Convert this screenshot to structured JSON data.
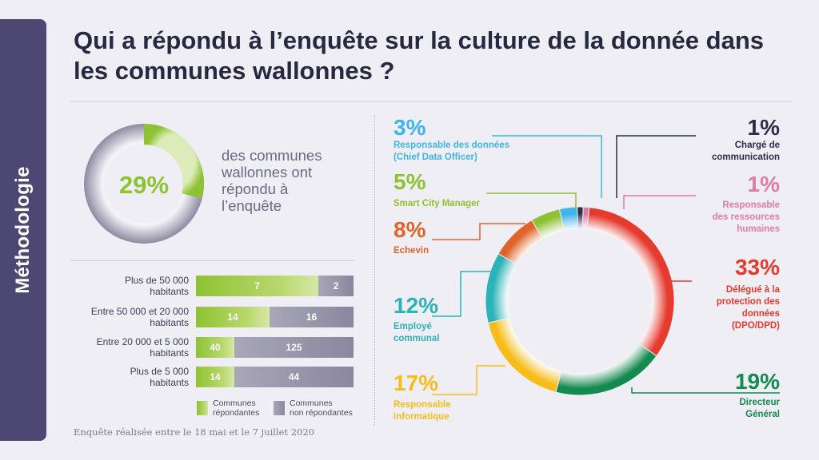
{
  "side_tab": "Méthodologie",
  "title": "Qui a répondu à l’enquête sur la culture de la donnée dans les communes wallonnes ?",
  "kpi": {
    "percent": 29,
    "percent_label": "29%",
    "text": "des communes wallonnes ont répondu à l’enquête",
    "fill_color": "#8ec232",
    "track_color": "#8a879e"
  },
  "footnote": "Enquête réalisée entre le 18 mai et le 7 juillet 2020",
  "chart_data": [
    {
      "type": "bar",
      "orientation": "horizontal",
      "stacked": true,
      "categories": [
        "Plus de 50 000\nhabitants",
        "Entre 50 000 et 20 000\nhabitants",
        "Entre 20 000 et 5 000\nhabitants",
        "Plus de 5 000\nhabitants"
      ],
      "series": [
        {
          "name": "Communes répondantes",
          "values": [
            7,
            14,
            40,
            14
          ],
          "value_labels": [
            "7",
            "14",
            "40",
            "14"
          ],
          "color": "#8ec232"
        },
        {
          "name": "Communes non répondantes",
          "values": [
            2,
            16,
            125,
            44
          ],
          "value_labels": [
            "2",
            "16",
            "125",
            "44"
          ],
          "color": "#8a879e"
        }
      ],
      "legend": {
        "respondents": "Communes\nrépondantes",
        "non_respondents": "Communes\nnon répondantes",
        "position": "bottom-right"
      }
    },
    {
      "type": "pie",
      "donut": true,
      "slices": [
        {
          "id": "cdo",
          "percent": 3,
          "label_pct": "3%",
          "label": "Responsable des données\n(Chief Data Officer)",
          "color": "#3db4ea"
        },
        {
          "id": "comm",
          "percent": 1,
          "label_pct": "1%",
          "label": "Chargé de\ncommunication",
          "color": "#2b2e4a"
        },
        {
          "id": "rh",
          "percent": 1,
          "label_pct": "1%",
          "label": "Responsable\ndes ressources\nhumaines",
          "color": "#e07ba5"
        },
        {
          "id": "dpo",
          "percent": 33,
          "label_pct": "33%",
          "label": "Délégué à la\nprotection des\ndonnées\n(DPO/DPD)",
          "color": "#e63a2e"
        },
        {
          "id": "dg",
          "percent": 19,
          "label_pct": "19%",
          "label": "Directeur\nGénéral",
          "color": "#138a4f"
        },
        {
          "id": "it",
          "percent": 17,
          "label_pct": "17%",
          "label": "Responsable\ninformatique",
          "color": "#f6bd1a"
        },
        {
          "id": "emp",
          "percent": 12,
          "label_pct": "12%",
          "label": "Employé\ncommunal",
          "color": "#2bb3b8"
        },
        {
          "id": "ech",
          "percent": 8,
          "label_pct": "8%",
          "label": "Echevin",
          "color": "#e0642a"
        },
        {
          "id": "scm",
          "percent": 5,
          "label_pct": "5%",
          "label": "Smart City Manager",
          "color": "#8ec232"
        }
      ]
    }
  ]
}
